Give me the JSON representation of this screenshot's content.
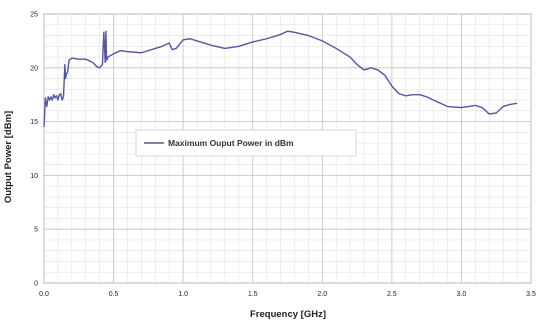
{
  "chart_data": {
    "type": "line",
    "xlabel": "Frequency [GHz]",
    "ylabel": "Output Power [dBm]",
    "xlim": [
      0,
      3.5
    ],
    "ylim": [
      0,
      25
    ],
    "x_ticks": [
      "0.0",
      "0.5",
      "1.0",
      "1.5",
      "2.0",
      "2.5",
      "3.0",
      "3.5"
    ],
    "y_ticks": [
      "0",
      "5",
      "10",
      "15",
      "20",
      "25"
    ],
    "grid": true,
    "legend_position": "center-left",
    "series": [
      {
        "name": "Maximum Ouput Power in dBm",
        "color": "#5555a0",
        "x": [
          0.0,
          0.01,
          0.02,
          0.03,
          0.04,
          0.05,
          0.06,
          0.07,
          0.08,
          0.09,
          0.1,
          0.11,
          0.12,
          0.13,
          0.14,
          0.15,
          0.155,
          0.16,
          0.17,
          0.18,
          0.2,
          0.25,
          0.3,
          0.35,
          0.38,
          0.4,
          0.42,
          0.43,
          0.44,
          0.445,
          0.45,
          0.46,
          0.5,
          0.55,
          0.6,
          0.7,
          0.8,
          0.85,
          0.9,
          0.92,
          0.95,
          1.0,
          1.05,
          1.1,
          1.2,
          1.3,
          1.4,
          1.5,
          1.6,
          1.7,
          1.75,
          1.8,
          1.9,
          2.0,
          2.1,
          2.2,
          2.25,
          2.3,
          2.35,
          2.4,
          2.45,
          2.5,
          2.55,
          2.6,
          2.65,
          2.7,
          2.75,
          2.8,
          2.9,
          3.0,
          3.05,
          3.1,
          3.15,
          3.2,
          3.25,
          3.3,
          3.35,
          3.4
        ],
        "y": [
          14.5,
          17.2,
          16.4,
          17.3,
          17.0,
          17.3,
          17.0,
          17.5,
          17.2,
          17.4,
          17.0,
          17.5,
          17.6,
          17.0,
          17.3,
          20.3,
          19.0,
          19.4,
          19.6,
          20.7,
          20.9,
          20.8,
          20.8,
          20.5,
          20.1,
          20.0,
          20.3,
          23.3,
          20.5,
          23.4,
          20.7,
          21.0,
          21.3,
          21.6,
          21.5,
          21.4,
          21.8,
          22.0,
          22.3,
          21.7,
          21.8,
          22.6,
          22.7,
          22.5,
          22.1,
          21.8,
          22.0,
          22.4,
          22.7,
          23.1,
          23.4,
          23.3,
          23.0,
          22.5,
          21.8,
          21.0,
          20.3,
          19.8,
          20.0,
          19.8,
          19.3,
          18.3,
          17.6,
          17.4,
          17.5,
          17.5,
          17.3,
          17.0,
          16.4,
          16.3,
          16.4,
          16.5,
          16.3,
          15.7,
          15.8,
          16.4,
          16.6,
          16.7
        ]
      }
    ]
  }
}
